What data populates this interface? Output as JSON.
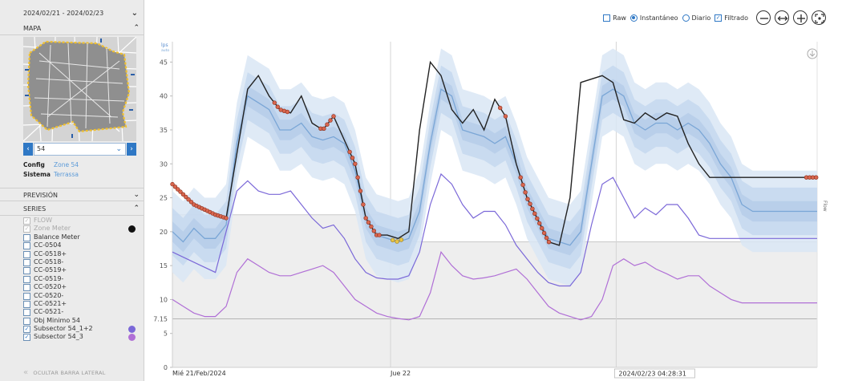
{
  "sidebar": {
    "date_range": "2024/02/21 - 2024/02/23",
    "map_label": "MAPA",
    "sector": "54",
    "config_label": "Config",
    "config_value": "Zone 54",
    "system_label": "Sistema",
    "system_value": "Terrassa",
    "forecast_label": "PREVISIÓN",
    "series_label": "SERIES",
    "series": [
      {
        "label": "FLOW",
        "checked": true,
        "disabled": true,
        "color": ""
      },
      {
        "label": "Zone Meter",
        "checked": true,
        "disabled": true,
        "color": "#111111"
      },
      {
        "label": "Balance Meter",
        "checked": false,
        "disabled": false,
        "color": ""
      },
      {
        "label": "CC-0504",
        "checked": false,
        "disabled": false,
        "color": ""
      },
      {
        "label": "CC-0518+",
        "checked": false,
        "disabled": false,
        "color": ""
      },
      {
        "label": "CC-0518-",
        "checked": false,
        "disabled": false,
        "color": ""
      },
      {
        "label": "CC-0519+",
        "checked": false,
        "disabled": false,
        "color": ""
      },
      {
        "label": "CC-0519-",
        "checked": false,
        "disabled": false,
        "color": ""
      },
      {
        "label": "CC-0520+",
        "checked": false,
        "disabled": false,
        "color": ""
      },
      {
        "label": "CC-0520-",
        "checked": false,
        "disabled": false,
        "color": ""
      },
      {
        "label": "CC-0521+",
        "checked": false,
        "disabled": false,
        "color": ""
      },
      {
        "label": "CC-0521-",
        "checked": false,
        "disabled": false,
        "color": ""
      },
      {
        "label": "Obj Minimo 54",
        "checked": false,
        "disabled": false,
        "color": ""
      },
      {
        "label": "Subsector 54_1+2",
        "checked": true,
        "disabled": false,
        "color": "#7b68d8"
      },
      {
        "label": "Subsector 54_3",
        "checked": true,
        "disabled": false,
        "color": "#b06fd6"
      }
    ],
    "hide_label": "OCULTAR BARRA LATERAL"
  },
  "toolbar": {
    "raw_label": "Raw",
    "instant_label": "Instantáneo",
    "daily_label": "Diario",
    "filtered_label": "Filtrado",
    "raw_checked": false,
    "instant_selected": true,
    "daily_selected": false,
    "filtered_checked": true,
    "icons": [
      "zoom-out-icon",
      "fit-width-icon",
      "zoom-in-icon",
      "fit-screen-icon"
    ]
  },
  "chart_data": {
    "type": "line",
    "ylabel": "lps",
    "yunit_sub": "auto",
    "right_label": "Flow",
    "ylim": [
      0,
      48
    ],
    "yticks": [
      0,
      5,
      10,
      15,
      20,
      25,
      30,
      35,
      40,
      45
    ],
    "threshold_label": "7.15",
    "threshold_value": 7.15,
    "x_labels": [
      "Mié 21/Feb/2024",
      "Jue 22"
    ],
    "cursor_label": "2024/02/23 04:28:31",
    "xlim": [
      0,
      60
    ],
    "x_tick_positions": [
      0,
      20.3
    ],
    "cursor_x": 41.3,
    "colors": {
      "measured": "#222222",
      "forecast": "#7aa6d6",
      "band": "#c8daf0",
      "sub12": "#7b68d8",
      "sub3": "#b06fd6",
      "anomaly": "#d9674f",
      "anomaly_alt": "#e8c447",
      "background_fill": "#eeeeee"
    },
    "series": [
      {
        "name": "Zone Meter",
        "key": "measured",
        "x": [
          0,
          2,
          4,
          5,
          7,
          8,
          9,
          10,
          11,
          12,
          13,
          14,
          15,
          17,
          18,
          19,
          20,
          21,
          22,
          23,
          24,
          25,
          26,
          27,
          28,
          29,
          30,
          31,
          32,
          33,
          35,
          36,
          37,
          38,
          40,
          41,
          42,
          43,
          44,
          45,
          46,
          47,
          48,
          49,
          50,
          51,
          52,
          53,
          54,
          55,
          56,
          57,
          58,
          59,
          60
        ],
        "y": [
          27,
          24,
          22.5,
          22,
          41,
          43,
          40,
          38,
          37.5,
          40,
          36,
          35,
          37,
          30,
          22,
          19.5,
          19.5,
          19,
          20,
          35,
          45,
          43,
          38,
          36,
          38,
          35,
          39.5,
          37,
          30,
          25,
          18.5,
          18,
          25,
          42,
          43,
          42,
          36.5,
          36,
          37.5,
          36.5,
          37.5,
          37,
          33,
          30,
          28,
          28,
          28,
          28,
          28,
          28,
          28,
          28,
          28,
          28,
          28
        ]
      },
      {
        "name": "Forecast",
        "key": "forecast",
        "x": [
          0,
          1,
          2,
          3,
          4,
          5,
          6,
          7,
          8,
          9,
          10,
          11,
          12,
          13,
          14,
          15,
          16,
          17,
          18,
          19,
          20,
          21,
          22,
          23,
          24,
          25,
          26,
          27,
          28,
          29,
          30,
          31,
          32,
          33,
          34,
          35,
          36,
          37,
          38,
          39,
          40,
          41,
          42,
          43,
          44,
          45,
          46,
          47,
          48,
          49,
          50,
          51,
          52,
          53,
          54,
          55,
          56,
          57,
          58,
          59,
          60
        ],
        "y": [
          20,
          18.5,
          20.5,
          19,
          19,
          21,
          33,
          40,
          39,
          38,
          35,
          35,
          36,
          34,
          33.5,
          34,
          33,
          29,
          22,
          19.5,
          19,
          18.5,
          19,
          23,
          33,
          41,
          40,
          35,
          34.5,
          34,
          33,
          34,
          30,
          25,
          22,
          19,
          18.5,
          18,
          20,
          30,
          40,
          41,
          40,
          36,
          35,
          36,
          36,
          35,
          36,
          35,
          33,
          30,
          28,
          24,
          23,
          23,
          23,
          23,
          23,
          23,
          23
        ]
      },
      {
        "name": "Subsector 54_1+2",
        "key": "sub12",
        "x": [
          0,
          2,
          4,
          5,
          6,
          7,
          8,
          9,
          10,
          11,
          12,
          13,
          14,
          15,
          16,
          17,
          18,
          19,
          20,
          21,
          22,
          23,
          24,
          25,
          26,
          27,
          28,
          29,
          30,
          31,
          32,
          33,
          34,
          35,
          36,
          37,
          38,
          39,
          40,
          41,
          42,
          43,
          44,
          45,
          46,
          47,
          48,
          49,
          50,
          51,
          52,
          53,
          54,
          55,
          56,
          57,
          58,
          59,
          60
        ],
        "y": [
          17,
          15.5,
          14,
          20,
          26,
          27.5,
          26,
          25.5,
          25.5,
          26,
          24,
          22,
          20.5,
          21,
          19,
          16,
          14,
          13.2,
          13,
          13,
          13.5,
          17,
          24,
          28.5,
          27,
          24,
          22,
          23,
          23,
          21,
          18,
          16,
          14,
          12.5,
          12,
          12,
          14,
          21,
          27,
          28,
          25,
          22,
          23.5,
          22.5,
          24,
          24,
          22,
          19.5,
          19,
          19,
          19,
          19,
          19,
          19,
          19,
          19,
          19,
          19,
          19
        ]
      },
      {
        "name": "Subsector 54_3",
        "key": "sub3",
        "x": [
          0,
          1,
          2,
          3,
          4,
          5,
          6,
          7,
          8,
          9,
          10,
          11,
          12,
          13,
          14,
          15,
          16,
          17,
          18,
          19,
          20,
          21,
          22,
          23,
          24,
          25,
          26,
          27,
          28,
          29,
          30,
          31,
          32,
          33,
          34,
          35,
          36,
          37,
          38,
          39,
          40,
          41,
          42,
          43,
          44,
          45,
          46,
          47,
          48,
          49,
          50,
          51,
          52,
          53,
          54,
          55,
          56,
          57,
          58,
          59,
          60
        ],
        "y": [
          10,
          9,
          8,
          7.5,
          7.5,
          9,
          14,
          16,
          15,
          14,
          13.5,
          13.5,
          14,
          14.5,
          15,
          14,
          12,
          10,
          9,
          8,
          7.5,
          7.2,
          7,
          7.5,
          11,
          17,
          15,
          13.5,
          13,
          13.2,
          13.5,
          14,
          14.5,
          13,
          11,
          9,
          8,
          7.5,
          7,
          7.5,
          10,
          15,
          16,
          15,
          15.5,
          14.5,
          13.8,
          13,
          13.5,
          13.5,
          12,
          11,
          10,
          9.5,
          9.5,
          9.5,
          9.5,
          9.5,
          9.5,
          9.5,
          9.5
        ]
      }
    ]
  }
}
